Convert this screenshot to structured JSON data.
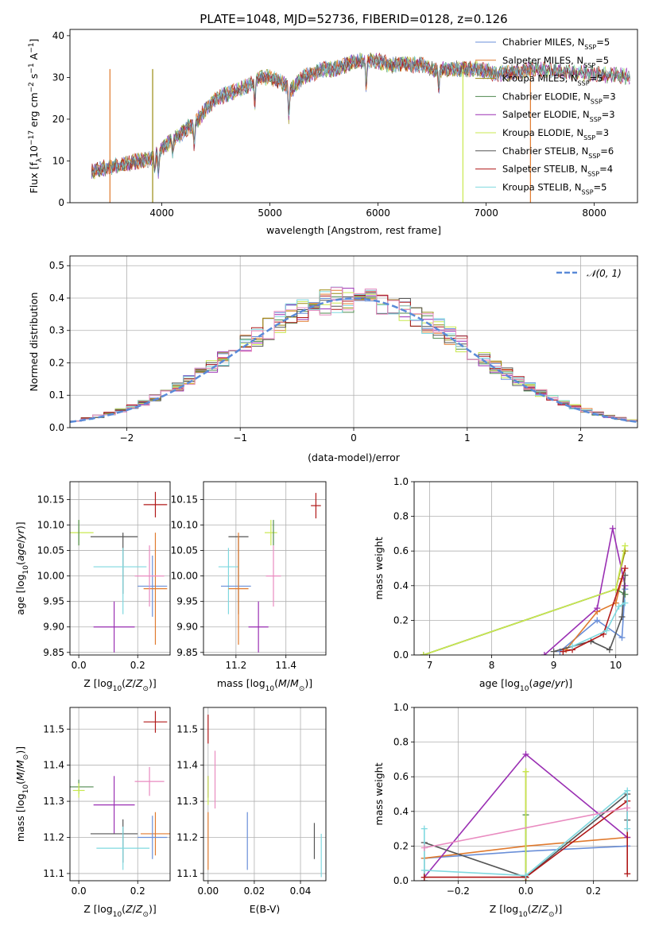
{
  "figure_title": "PLATE=1048, MJD=52736, FIBERID=0128, z=0.126",
  "colors": {
    "Chabrier MILES": "#6a8fd8",
    "Salpeter MILES": "#e07a2e",
    "Kroupa MILES": "#9a8a10",
    "Chabrier ELODIE": "#4f8a4f",
    "Salpeter ELODIE": "#9a2fb3",
    "Kroupa ELODIE": "#c9e84f",
    "Chabrier STELIB": "#555555",
    "Salpeter STELIB": "#b01818",
    "Kroupa STELIB": "#7fd8df",
    "pink": "#e98bc0",
    "normal": "#5a8ad8"
  },
  "chart_data": [
    {
      "id": "spectrum",
      "type": "line",
      "ylabel": "Flux [f_λ10^-17 erg cm^-2 s^-1 A^-1]",
      "xlabel": "wavelength [Angstrom, rest frame]",
      "xlim": [
        3150,
        8400
      ],
      "ylim": [
        0,
        41.5
      ],
      "xticks": [
        "4000",
        "5000",
        "6000",
        "7000",
        "8000"
      ],
      "yticks": [
        "0",
        "10",
        "20",
        "30",
        "40"
      ],
      "legend_position": "top-right",
      "legend": [
        {
          "label": "Chabrier MILES, N",
          "sub": "SSP",
          "tail": "=5",
          "color_key": "Chabrier MILES"
        },
        {
          "label": "Salpeter MILES, N",
          "sub": "SSP",
          "tail": "=5",
          "color_key": "Salpeter MILES"
        },
        {
          "label": "Kroupa MILES, N",
          "sub": "SSP",
          "tail": "=5",
          "color_key": "Kroupa MILES"
        },
        {
          "label": "Chabrier ELODIE, N",
          "sub": "SSP",
          "tail": "=3",
          "color_key": "Chabrier ELODIE"
        },
        {
          "label": "Salpeter ELODIE, N",
          "sub": "SSP",
          "tail": "=3",
          "color_key": "Salpeter ELODIE"
        },
        {
          "label": "Kroupa ELODIE, N",
          "sub": "SSP",
          "tail": "=3",
          "color_key": "Kroupa ELODIE"
        },
        {
          "label": "Chabrier STELIB, N",
          "sub": "SSP",
          "tail": "=6",
          "color_key": "Chabrier STELIB"
        },
        {
          "label": "Salpeter STELIB, N",
          "sub": "SSP",
          "tail": "=4",
          "color_key": "Salpeter STELIB"
        },
        {
          "label": "Kroupa STELIB, N",
          "sub": "SSP",
          "tail": "=5",
          "color_key": "Kroupa STELIB"
        }
      ],
      "continuum": [
        [
          3350,
          7.5
        ],
        [
          3500,
          8.5
        ],
        [
          3700,
          9.5
        ],
        [
          3900,
          10.5
        ],
        [
          4000,
          13
        ],
        [
          4100,
          15
        ],
        [
          4200,
          17
        ],
        [
          4300,
          19
        ],
        [
          4400,
          22
        ],
        [
          4500,
          25
        ],
        [
          4600,
          26
        ],
        [
          4700,
          27
        ],
        [
          4800,
          28
        ],
        [
          4900,
          30
        ],
        [
          5000,
          30
        ],
        [
          5100,
          29
        ],
        [
          5200,
          27
        ],
        [
          5300,
          30
        ],
        [
          5400,
          31
        ],
        [
          5500,
          32
        ],
        [
          5600,
          32
        ],
        [
          5700,
          33
        ],
        [
          5800,
          34
        ],
        [
          5900,
          34
        ],
        [
          6000,
          34
        ],
        [
          6100,
          33
        ],
        [
          6200,
          33
        ],
        [
          6300,
          33
        ],
        [
          6400,
          33
        ],
        [
          6500,
          32
        ],
        [
          6600,
          32
        ],
        [
          6700,
          32
        ],
        [
          6800,
          32
        ],
        [
          6900,
          32
        ],
        [
          7000,
          31.5
        ],
        [
          7100,
          31
        ],
        [
          7200,
          31
        ],
        [
          7300,
          31.5
        ],
        [
          7420,
          32
        ]
      ],
      "dips": [
        [
          3934,
          0.35
        ],
        [
          3968,
          0.4
        ],
        [
          4101,
          0.2
        ],
        [
          4300,
          0.3
        ],
        [
          4861,
          0.2
        ],
        [
          5175,
          0.25
        ],
        [
          5890,
          0.2
        ],
        [
          6563,
          0.15
        ]
      ],
      "spikes_to_zero": [
        {
          "x": 3520,
          "color_key": "Salpeter MILES"
        },
        {
          "x": 3915,
          "color_key": "Kroupa MILES"
        },
        {
          "x": 6785,
          "color_key": "Kroupa ELODIE"
        },
        {
          "x": 7410,
          "color_key": "Salpeter MILES"
        }
      ]
    },
    {
      "id": "residuals",
      "type": "bar",
      "ylabel": "Normed distribution",
      "xlabel": "(data-model)/error",
      "xlim": [
        -2.5,
        2.5
      ],
      "ylim": [
        0,
        0.53
      ],
      "xticks": [
        "−2",
        "−1",
        "0",
        "1",
        "2"
      ],
      "yticks": [
        "0.0",
        "0.1",
        "0.2",
        "0.3",
        "0.4",
        "0.5"
      ],
      "bin_width": 0.1,
      "legend_label": "𝒩(0, 1)",
      "legend_position": "top-right",
      "normal_curve": {
        "mean": 0,
        "sigma": 1
      }
    },
    {
      "id": "age_vs_Z",
      "type": "scatter",
      "ylabel": "age  [log10(age/yr)]",
      "xlabel": "Z [log10(Z/Z⊙)]",
      "xlim": [
        -0.03,
        0.31
      ],
      "ylim": [
        9.845,
        10.185
      ],
      "xticks": [
        "0.0",
        "0.2"
      ],
      "yticks": [
        "9.85",
        "9.90",
        "9.95",
        "10.00",
        "10.05",
        "10.10",
        "10.15"
      ],
      "points": [
        {
          "x": 0.0,
          "y": 10.085,
          "xerr": 0.05,
          "yerr": 0.025,
          "color_key": "Kroupa ELODIE"
        },
        {
          "x": 0.0,
          "y": 10.085,
          "xerr": 0.0,
          "yerr": 0.025,
          "color_key": "Chabrier ELODIE"
        },
        {
          "x": 0.12,
          "y": 10.077,
          "xerr": 0.08,
          "yerr": 0.0,
          "color_key": "Chabrier STELIB"
        },
        {
          "x": 0.15,
          "y": 10.025,
          "xerr": 0.0,
          "yerr": 0.06,
          "color_key": "Chabrier STELIB"
        },
        {
          "x": 0.14,
          "y": 10.018,
          "xerr": 0.09,
          "yerr": 0.0,
          "color_key": "Kroupa STELIB"
        },
        {
          "x": 0.15,
          "y": 9.99,
          "xerr": 0.0,
          "yerr": 0.065,
          "color_key": "Kroupa STELIB"
        },
        {
          "x": 0.26,
          "y": 10.14,
          "xerr": 0.04,
          "yerr": 0.025,
          "color_key": "Salpeter STELIB"
        },
        {
          "x": 0.25,
          "y": 9.98,
          "xerr": 0.05,
          "yerr": 0.06,
          "color_key": "Chabrier MILES"
        },
        {
          "x": 0.26,
          "y": 9.975,
          "xerr": 0.04,
          "yerr": 0.11,
          "color_key": "Salpeter MILES"
        },
        {
          "x": 0.24,
          "y": 10.0,
          "xerr": 0.05,
          "yerr": 0.06,
          "color_key": "pink"
        },
        {
          "x": 0.12,
          "y": 9.9,
          "xerr": 0.07,
          "yerr": 0.05,
          "color_key": "Salpeter ELODIE"
        }
      ]
    },
    {
      "id": "age_vs_mass",
      "type": "scatter",
      "xlabel": "mass [log10(M/M⊙)]",
      "xlim": [
        11.07,
        11.56
      ],
      "ylim": [
        9.845,
        10.185
      ],
      "xticks": [
        "11.2",
        "11.4"
      ],
      "yticks": [
        "9.85",
        "9.90",
        "9.95",
        "10.00",
        "10.05",
        "10.10",
        "10.15"
      ],
      "points": [
        {
          "x": 11.34,
          "y": 10.085,
          "xerr": 0.025,
          "yerr": 0.025,
          "color_key": "Kroupa ELODIE"
        },
        {
          "x": 11.35,
          "y": 10.085,
          "xerr": 0.0,
          "yerr": 0.025,
          "color_key": "Chabrier ELODIE"
        },
        {
          "x": 11.21,
          "y": 10.077,
          "xerr": 0.04,
          "yerr": 0.0,
          "color_key": "Chabrier STELIB"
        },
        {
          "x": 11.21,
          "y": 10.0,
          "xerr": 0.0,
          "yerr": 0.075,
          "color_key": "Chabrier STELIB"
        },
        {
          "x": 11.17,
          "y": 10.018,
          "xerr": 0.04,
          "yerr": 0.0,
          "color_key": "Kroupa STELIB"
        },
        {
          "x": 11.17,
          "y": 9.99,
          "xerr": 0.0,
          "yerr": 0.065,
          "color_key": "Kroupa STELIB"
        },
        {
          "x": 11.52,
          "y": 10.138,
          "xerr": 0.02,
          "yerr": 0.025,
          "color_key": "Salpeter STELIB"
        },
        {
          "x": 11.2,
          "y": 9.98,
          "xerr": 0.06,
          "yerr": 0.0,
          "color_key": "Chabrier MILES"
        },
        {
          "x": 11.21,
          "y": 9.975,
          "xerr": 0.04,
          "yerr": 0.11,
          "color_key": "Salpeter MILES"
        },
        {
          "x": 11.35,
          "y": 10.0,
          "xerr": 0.03,
          "yerr": 0.06,
          "color_key": "pink"
        },
        {
          "x": 11.29,
          "y": 9.9,
          "xerr": 0.04,
          "yerr": 0.05,
          "color_key": "Salpeter ELODIE"
        }
      ]
    },
    {
      "id": "weight_vs_age",
      "type": "line",
      "ylabel": "mass weight",
      "xlabel": "age  [log10(age/yr)]",
      "xlim": [
        6.75,
        10.35
      ],
      "ylim": [
        0,
        1.0
      ],
      "xticks": [
        "7",
        "8",
        "9",
        "10"
      ],
      "yticks": [
        "0.0",
        "0.2",
        "0.4",
        "0.6",
        "0.8",
        "1.0"
      ],
      "series": [
        {
          "color_key": "Chabrier MILES",
          "x": [
            9.1,
            9.7,
            10.1,
            10.15
          ],
          "y": [
            0.02,
            0.2,
            0.1,
            0.38
          ]
        },
        {
          "color_key": "Salpeter MILES",
          "x": [
            9.2,
            9.7,
            10.0,
            10.1
          ],
          "y": [
            0.03,
            0.25,
            0.3,
            0.44
          ]
        },
        {
          "color_key": "Kroupa MILES",
          "x": [
            6.9,
            10.0,
            10.15
          ],
          "y": [
            0.0,
            0.38,
            0.6
          ]
        },
        {
          "color_key": "Chabrier ELODIE",
          "x": [
            6.9,
            10.0,
            10.15
          ],
          "y": [
            0.0,
            0.38,
            0.35
          ]
        },
        {
          "color_key": "Salpeter ELODIE",
          "x": [
            8.85,
            9.7,
            9.95,
            10.15
          ],
          "y": [
            0.0,
            0.27,
            0.73,
            0.4
          ]
        },
        {
          "color_key": "Kroupa ELODIE",
          "x": [
            6.9,
            10.0,
            10.15
          ],
          "y": [
            0.0,
            0.38,
            0.63
          ]
        },
        {
          "color_key": "Chabrier STELIB",
          "x": [
            9.0,
            9.6,
            9.9,
            10.1,
            10.15
          ],
          "y": [
            0.02,
            0.08,
            0.03,
            0.22,
            0.46
          ]
        },
        {
          "color_key": "Salpeter STELIB",
          "x": [
            9.15,
            9.3,
            9.8,
            10.15
          ],
          "y": [
            0.02,
            0.03,
            0.12,
            0.5
          ]
        },
        {
          "color_key": "Kroupa STELIB",
          "x": [
            9.3,
            9.85,
            10.05,
            10.15
          ],
          "y": [
            0.05,
            0.14,
            0.28,
            0.3
          ]
        }
      ]
    },
    {
      "id": "mass_vs_Z",
      "type": "scatter",
      "ylabel": "mass [log10(M/M⊙)]",
      "xlabel": "Z [log10(Z/Z⊙)]",
      "xlim": [
        -0.03,
        0.31
      ],
      "ylim": [
        11.08,
        11.56
      ],
      "xticks": [
        "0.0",
        "0.2"
      ],
      "yticks": [
        "11.1",
        "11.2",
        "11.3",
        "11.4",
        "11.5"
      ],
      "points": [
        {
          "x": 0.0,
          "y": 11.34,
          "xerr": 0.05,
          "yerr": 0.02,
          "color_key": "Chabrier ELODIE"
        },
        {
          "x": 0.0,
          "y": 11.33,
          "xerr": 0.02,
          "yerr": 0.02,
          "color_key": "Kroupa ELODIE"
        },
        {
          "x": 0.12,
          "y": 11.29,
          "xerr": 0.07,
          "yerr": 0.08,
          "color_key": "Salpeter ELODIE"
        },
        {
          "x": 0.12,
          "y": 11.21,
          "xerr": 0.08,
          "yerr": 0.0,
          "color_key": "Chabrier STELIB"
        },
        {
          "x": 0.15,
          "y": 11.19,
          "xerr": 0.0,
          "yerr": 0.06,
          "color_key": "Chabrier STELIB"
        },
        {
          "x": 0.15,
          "y": 11.17,
          "xerr": 0.09,
          "yerr": 0.06,
          "color_key": "Kroupa STELIB"
        },
        {
          "x": 0.26,
          "y": 11.52,
          "xerr": 0.04,
          "yerr": 0.03,
          "color_key": "Salpeter STELIB"
        },
        {
          "x": 0.26,
          "y": 11.21,
          "xerr": 0.05,
          "yerr": 0.06,
          "color_key": "Salpeter MILES"
        },
        {
          "x": 0.25,
          "y": 11.2,
          "xerr": 0.05,
          "yerr": 0.06,
          "color_key": "Chabrier MILES"
        },
        {
          "x": 0.24,
          "y": 11.355,
          "xerr": 0.05,
          "yerr": 0.04,
          "color_key": "pink"
        }
      ]
    },
    {
      "id": "mass_vs_ebv",
      "type": "scatter",
      "xlabel": "E(B-V)",
      "xlim": [
        -0.002,
        0.051
      ],
      "ylim": [
        11.08,
        11.56
      ],
      "xticks": [
        "0.00",
        "0.02",
        "0.04"
      ],
      "yticks": [
        "11.1",
        "11.2",
        "11.3",
        "11.4",
        "11.5"
      ],
      "points": [
        {
          "x": 0.0,
          "y": 11.5,
          "xerr": 0,
          "yerr": 0.04,
          "color_key": "Salpeter STELIB"
        },
        {
          "x": 0.0,
          "y": 11.34,
          "xerr": 0,
          "yerr": 0.03,
          "color_key": "Salpeter ELODIE"
        },
        {
          "x": 0.0,
          "y": 11.33,
          "xerr": 0,
          "yerr": 0.04,
          "color_key": "Kroupa ELODIE"
        },
        {
          "x": 0.0,
          "y": 11.19,
          "xerr": 0,
          "yerr": 0.08,
          "color_key": "Salpeter MILES"
        },
        {
          "x": 0.003,
          "y": 11.36,
          "xerr": 0,
          "yerr": 0.08,
          "color_key": "pink"
        },
        {
          "x": 0.017,
          "y": 11.19,
          "xerr": 0,
          "yerr": 0.08,
          "color_key": "Chabrier MILES"
        },
        {
          "x": 0.046,
          "y": 11.19,
          "xerr": 0,
          "yerr": 0.05,
          "color_key": "Chabrier STELIB"
        },
        {
          "x": 0.049,
          "y": 11.15,
          "xerr": 0,
          "yerr": 0.06,
          "color_key": "Kroupa STELIB"
        }
      ]
    },
    {
      "id": "weight_vs_Z",
      "type": "line",
      "ylabel": "mass weight",
      "xlabel": "Z [log10(Z/Z⊙)]",
      "xlim": [
        -0.33,
        0.33
      ],
      "ylim": [
        0,
        1.0
      ],
      "xticks": [
        "−0.2",
        "0.0",
        "0.2"
      ],
      "yticks": [
        "0.0",
        "0.2",
        "0.4",
        "0.6",
        "0.8",
        "1.0"
      ],
      "series": [
        {
          "color_key": "Chabrier MILES",
          "x": [
            -0.3,
            0.0,
            0.3
          ],
          "y": [
            0.13,
            0.17,
            0.2
          ]
        },
        {
          "color_key": "Salpeter MILES",
          "x": [
            -0.3,
            0.0,
            0.3
          ],
          "y": [
            0.13,
            0.2,
            0.25
          ]
        },
        {
          "color_key": "Kroupa MILES",
          "x": [
            0.0,
            0.0
          ],
          "y": [
            0.02,
            0.63
          ]
        },
        {
          "color_key": "Chabrier ELODIE",
          "x": [
            0.0,
            0.0
          ],
          "y": [
            0.02,
            0.38
          ]
        },
        {
          "color_key": "Salpeter ELODIE",
          "x": [
            -0.3,
            0.0,
            0.3
          ],
          "y": [
            0.02,
            0.73,
            0.25
          ]
        },
        {
          "color_key": "Kroupa ELODIE",
          "x": [
            0.0,
            0.0
          ],
          "y": [
            0.0,
            0.63
          ]
        },
        {
          "color_key": "Chabrier STELIB",
          "x": [
            -0.3,
            -0.3,
            0.0,
            0.3,
            0.3
          ],
          "y": [
            0.0,
            0.22,
            0.02,
            0.5,
            0.35
          ]
        },
        {
          "color_key": "Salpeter STELIB",
          "x": [
            -0.3,
            0.0,
            0.3,
            0.3
          ],
          "y": [
            0.02,
            0.02,
            0.46,
            0.04
          ]
        },
        {
          "color_key": "Kroupa STELIB",
          "x": [
            -0.3,
            -0.3,
            0.0,
            0.3,
            0.3
          ],
          "y": [
            0.3,
            0.06,
            0.03,
            0.52,
            0.3
          ]
        },
        {
          "color_key": "pink",
          "x": [
            -0.3,
            0.3
          ],
          "y": [
            0.19,
            0.42
          ]
        }
      ]
    }
  ]
}
